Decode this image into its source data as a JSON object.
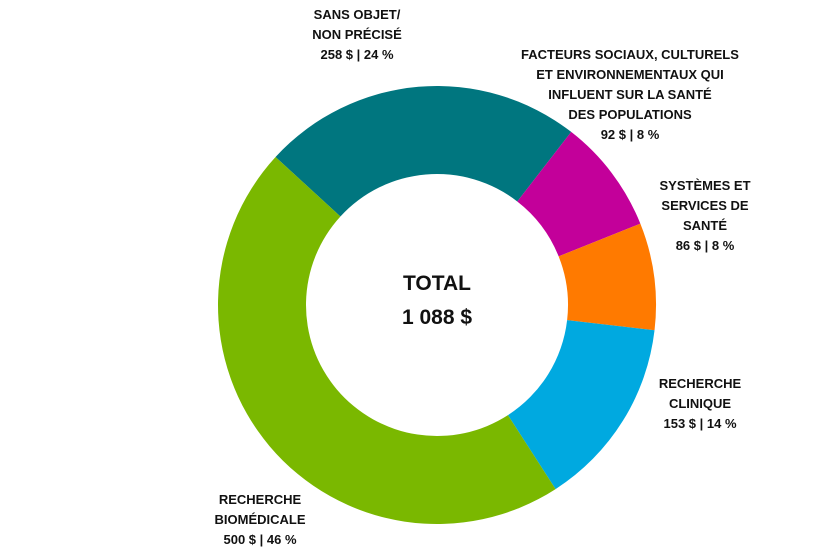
{
  "chart_data": {
    "type": "pie",
    "style": "donut",
    "center": {
      "title": "TOTAL",
      "value": "1 088 $"
    },
    "slices": [
      {
        "label_lines": [
          "SANS OBJET/",
          "NON PRÉCISÉ"
        ],
        "value": 258,
        "value_label": "258 $ | 24 %",
        "color": "#00767F"
      },
      {
        "label_lines": [
          "FACTEURS SOCIAUX, CULTURELS",
          "ET ENVIRONNEMENTAUX QUI",
          "INFLUENT SUR LA SANTÉ",
          "DES POPULATIONS"
        ],
        "value": 92,
        "value_label": "92 $ | 8 %",
        "color": "#C3009A"
      },
      {
        "label_lines": [
          "SYSTÈMES ET",
          "SERVICES DE",
          "SANTÉ"
        ],
        "value": 86,
        "value_label": "86 $ | 8 %",
        "color": "#FF7A00"
      },
      {
        "label_lines": [
          "RECHERCHE",
          "CLINIQUE"
        ],
        "value": 153,
        "value_label": "153 $ | 14 %",
        "color": "#00A9E0"
      },
      {
        "label_lines": [
          "RECHERCHE",
          "BIOMÉDICALE"
        ],
        "value": 500,
        "value_label": "500 $ | 46 %",
        "color": "#7AB800"
      }
    ]
  }
}
